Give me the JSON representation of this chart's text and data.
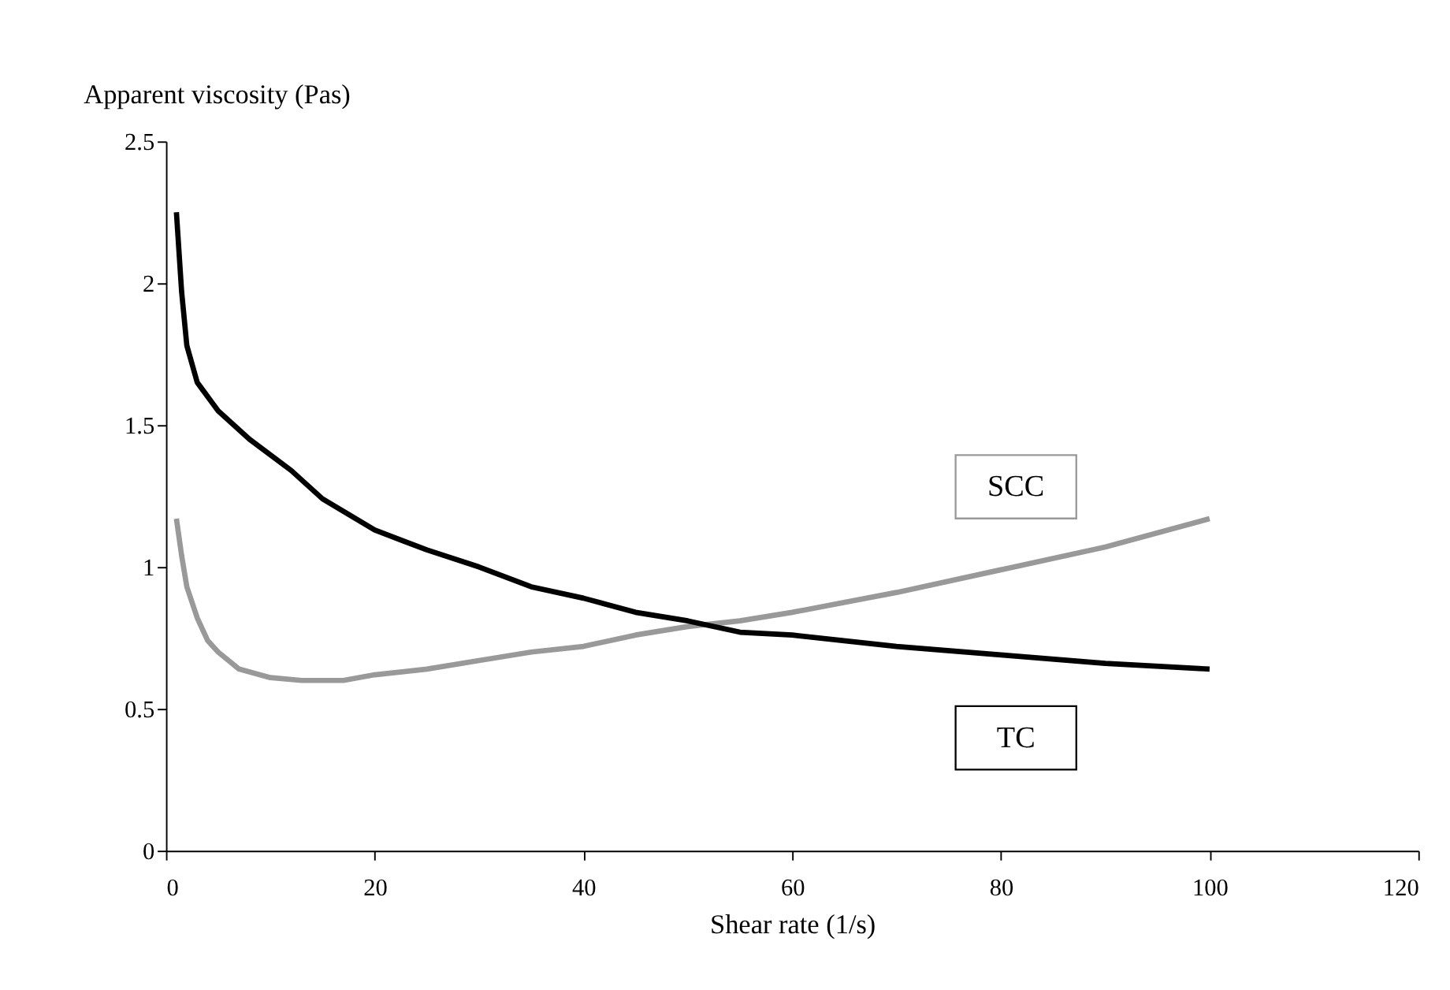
{
  "chart_data": {
    "type": "line",
    "xlabel": "Shear rate (1/s)",
    "ylabel": "Apparent viscosity (Pas)",
    "xlim": [
      0,
      120
    ],
    "xticks": [
      0,
      20,
      40,
      60,
      80,
      100,
      120
    ],
    "ylim": [
      0,
      2.5
    ],
    "yticks": [
      0,
      0.5,
      1,
      1.5,
      2,
      2.5
    ],
    "grid": false,
    "legend": false,
    "marker": "none",
    "line_style": "solid",
    "series": [
      {
        "name": "SCC",
        "color": "#999999",
        "x": [
          1,
          1.5,
          2,
          3,
          4,
          5,
          7,
          10,
          13,
          17,
          20,
          25,
          30,
          35,
          40,
          45,
          50,
          55,
          60,
          70,
          80,
          90,
          100
        ],
        "values": [
          1.17,
          1.04,
          0.93,
          0.82,
          0.74,
          0.7,
          0.64,
          0.61,
          0.6,
          0.6,
          0.62,
          0.64,
          0.67,
          0.7,
          0.72,
          0.76,
          0.79,
          0.81,
          0.84,
          0.91,
          0.99,
          1.07,
          1.17
        ]
      },
      {
        "name": "TC",
        "color": "#000000",
        "x": [
          1,
          1.5,
          2,
          3,
          5,
          8,
          12,
          15,
          20,
          25,
          30,
          35,
          40,
          45,
          50,
          55,
          60,
          70,
          80,
          90,
          100
        ],
        "values": [
          2.25,
          1.97,
          1.78,
          1.65,
          1.55,
          1.45,
          1.34,
          1.24,
          1.13,
          1.06,
          1.0,
          0.93,
          0.89,
          0.84,
          0.81,
          0.77,
          0.76,
          0.72,
          0.69,
          0.66,
          0.64
        ]
      }
    ]
  }
}
